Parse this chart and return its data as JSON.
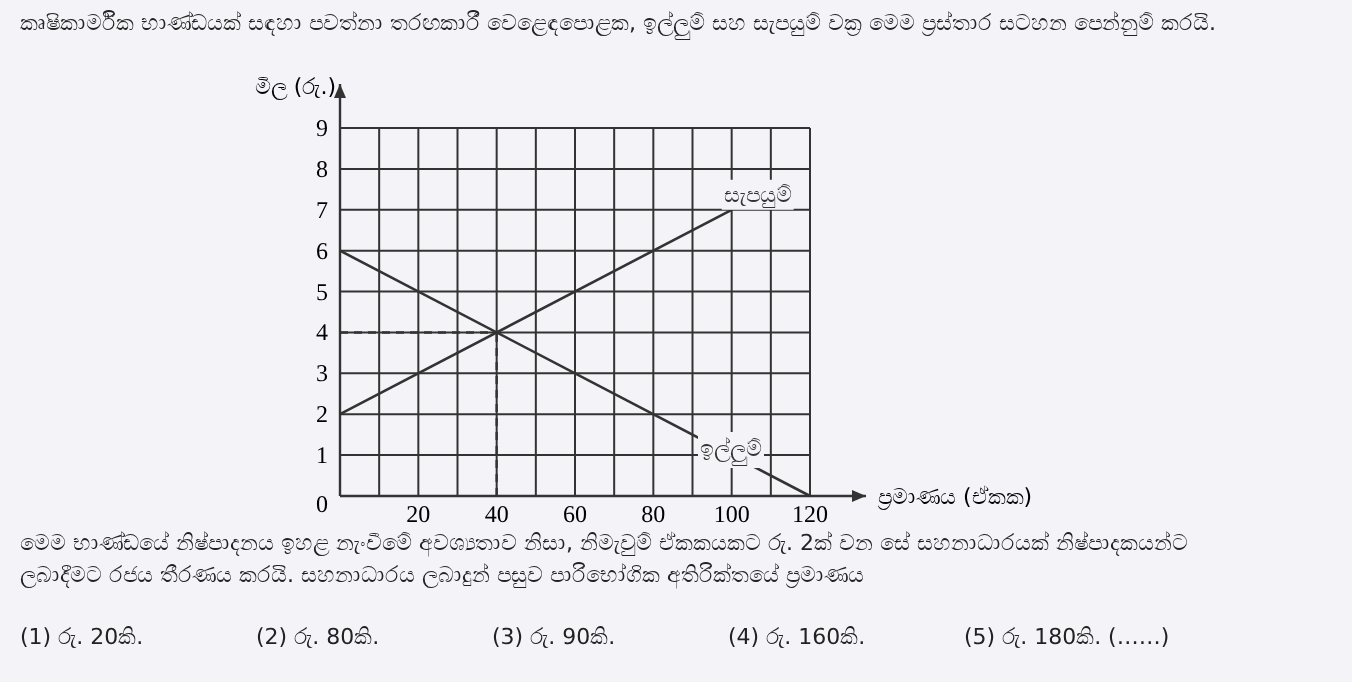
{
  "chart_data": {
    "type": "line",
    "title": "කෘෂිකාර්මික භාණ්ඩයක් සඳහා පවත්නා තරඟකාරී වෙළෙඳපොළක, ඉල්ලුම් සහ සැපයුම් වක්‍ර මෙම ප්‍රස්තාර සටහන පෙන්නුම් කරයි.",
    "xlabel": "ප්‍රමාණය (ඒකක)",
    "ylabel": "මිල (රු.)",
    "annotations": [
      "මෙම භාණ්ඩයේ නිෂ්පාදනය ඉහළ නැංවීමේ අවශ්‍යතාව නිසා, නිමැවුම් ඒකකයකට රු. 2ක් වන සේ සහනාධාරයක් නිෂ්පාදකයන්ට ලබාදීමට රජය තීරණය කරයි. සහනාධාරය ලබාදුන් පසුව පාරිභෝගික අතිරික්තයේ ප්‍රමාණය",
      "(1) රු. 20කි.",
      "(2) රු. 80කි.",
      "(3) රු. 90කි.",
      "(4) රු. 160කි.",
      "(5) රු. 180කි. (……)"
    ],
    "series": [
      {
        "name": "සැපයුම්",
        "color": "#333333",
        "x": [
          0,
          100
        ],
        "values": [
          2,
          7
        ]
      },
      {
        "name": "ඉල්ලුම්",
        "color": "#333333",
        "x": [
          0,
          120
        ],
        "values": [
          6,
          0
        ]
      }
    ],
    "xlim": [
      0,
      120
    ],
    "ylim": [
      0,
      9
    ],
    "xticks": [
      {
        "value": 0,
        "label": null
      },
      {
        "value": 10,
        "label": null
      },
      20,
      {
        "value": 30,
        "label": null
      },
      40,
      {
        "value": 50,
        "label": null
      },
      60,
      {
        "value": 70,
        "label": null
      },
      80,
      {
        "value": 90,
        "label": null
      },
      100,
      {
        "value": 110,
        "label": null
      },
      120
    ],
    "yticks": [
      0,
      1,
      2,
      3,
      4,
      5,
      6,
      7,
      8,
      9
    ],
    "ref_lines": [
      {
        "axis": "x",
        "value": 40,
        "line_style": "dashed"
      },
      {
        "axis": "y",
        "value": 4,
        "line_style": "dashed"
      }
    ],
    "grid": true,
    "legend": false,
    "marker": "none",
    "line_style": "solid"
  }
}
